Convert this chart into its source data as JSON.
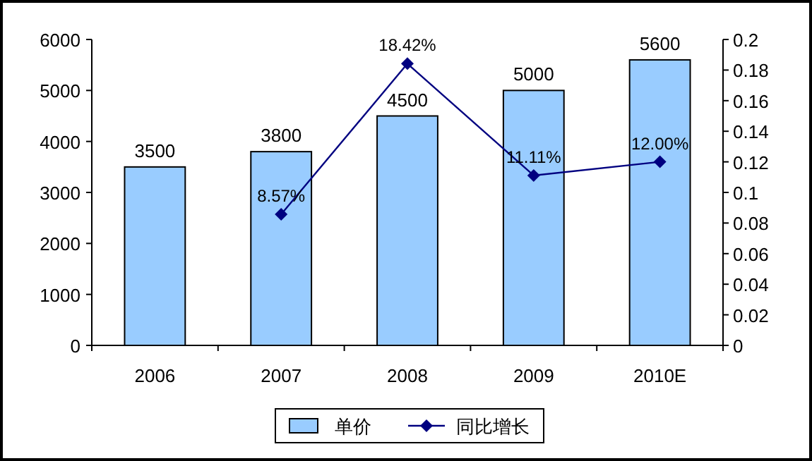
{
  "chart_data": {
    "type": "bar",
    "categories": [
      "2006",
      "2007",
      "2008",
      "2009",
      "2010E"
    ],
    "series": [
      {
        "name": "单价",
        "color": "#99ccff",
        "values": [
          3500,
          3800,
          4500,
          5000,
          5600
        ],
        "value_labels": [
          "3500",
          "3800",
          "4500",
          "5000",
          "5600"
        ]
      },
      {
        "name": "同比增长",
        "type": "line",
        "axis": "y2",
        "color": "#000080",
        "values": [
          null,
          0.0857,
          0.1842,
          0.1111,
          0.12
        ],
        "value_labels": [
          null,
          "8.57%",
          "18.42%",
          "11.11%",
          "12.00%"
        ]
      }
    ],
    "ylim": [
      0,
      6000
    ],
    "yticks": [
      0,
      1000,
      2000,
      3000,
      4000,
      5000,
      6000
    ],
    "y2lim": [
      0,
      0.2
    ],
    "y2ticks": [
      0,
      0.02,
      0.04,
      0.06,
      0.08,
      0.1,
      0.12,
      0.14,
      0.16,
      0.18,
      0.2
    ],
    "legend": "bottom",
    "marker": "diamond",
    "line_style": "solid"
  }
}
